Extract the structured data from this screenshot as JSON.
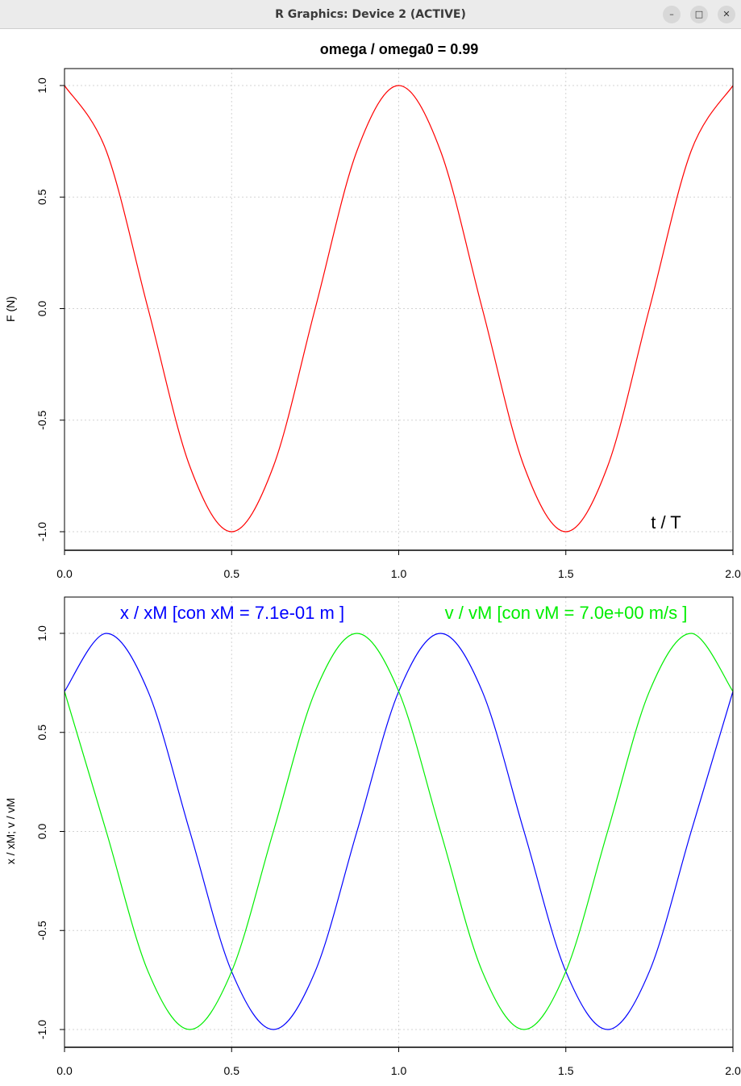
{
  "window": {
    "title": "R Graphics: Device 2 (ACTIVE)",
    "minimize_icon": "minimize-icon",
    "maximize_icon": "maximize-icon",
    "close_icon": "close-icon"
  },
  "colors": {
    "force": "#ff0000",
    "x": "#0000ff",
    "v": "#00ee00",
    "grid": "#d3d3d3",
    "text": "#000000"
  },
  "chart_data": [
    {
      "type": "line",
      "title": "omega / omega0  =  0.99",
      "ylabel": "F (N)",
      "annotation": "t / T",
      "xlim": [
        0,
        2
      ],
      "ylim": [
        -1,
        1
      ],
      "x_ticks": [
        "0.0",
        "0.5",
        "1.0",
        "1.5",
        "2.0"
      ],
      "y_ticks": [
        "-1.0",
        "-0.5",
        "0.0",
        "0.5",
        "1.0"
      ],
      "grid": true,
      "series": [
        {
          "color": "#ff0000",
          "x": [
            0,
            0.125,
            0.25,
            0.375,
            0.5,
            0.625,
            0.75,
            0.875,
            1,
            1.125,
            1.25,
            1.375,
            1.5,
            1.625,
            1.75,
            1.875,
            2
          ],
          "y": [
            1,
            0.707,
            0,
            -0.707,
            -1,
            -0.707,
            0,
            0.707,
            1,
            0.707,
            0,
            -0.707,
            -1,
            -0.707,
            0,
            0.707,
            1
          ]
        }
      ]
    },
    {
      "type": "line",
      "ylabel": "x / xM;  v / vM",
      "xlim": [
        0,
        2
      ],
      "ylim": [
        -1,
        1
      ],
      "x_ticks": [
        "0.0",
        "0.5",
        "1.0",
        "1.5",
        "2.0"
      ],
      "y_ticks": [
        "-1.0",
        "-0.5",
        "0.0",
        "0.5",
        "1.0"
      ],
      "grid": true,
      "legend_x": "x / xM  [con  xM = 7.1e-01 m ]",
      "legend_v": "v / vM  [con  vM = 7.0e+00 m/s ]",
      "series": [
        {
          "name": "x / xM  [con  xM = 7.1e-01 m ]",
          "color": "#0000ff",
          "x": [
            0,
            0.125,
            0.25,
            0.375,
            0.5,
            0.625,
            0.75,
            0.875,
            1,
            1.125,
            1.25,
            1.375,
            1.5,
            1.625,
            1.75,
            1.875,
            2
          ],
          "y": [
            0.707,
            1,
            0.707,
            0,
            -0.707,
            -1,
            -0.707,
            0,
            0.707,
            1,
            0.707,
            0,
            -0.707,
            -1,
            -0.707,
            0,
            0.707
          ]
        },
        {
          "name": "v / vM  [con  vM = 7.0e+00 m/s ]",
          "color": "#00ee00",
          "x": [
            0,
            0.125,
            0.25,
            0.375,
            0.5,
            0.625,
            0.75,
            0.875,
            1,
            1.125,
            1.25,
            1.375,
            1.5,
            1.625,
            1.75,
            1.875,
            2
          ],
          "y": [
            0.707,
            0,
            -0.707,
            -1,
            -0.707,
            0,
            0.707,
            1,
            0.707,
            0,
            -0.707,
            -1,
            -0.707,
            0,
            0.707,
            1,
            0.707
          ]
        }
      ]
    }
  ]
}
